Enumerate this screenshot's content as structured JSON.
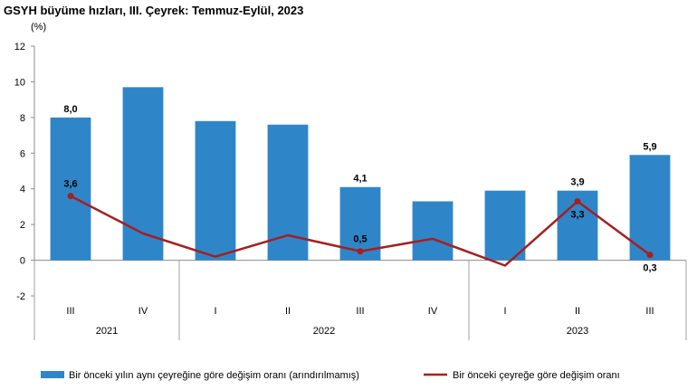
{
  "chart_data": {
    "type": "bar",
    "title": "GSYH büyüme hızları, III. Çeyrek: Temmuz-Eylül, 2023",
    "ylabel": "(%)",
    "xlabel": "",
    "ylim": [
      -2,
      12
    ],
    "yticks": [
      -2,
      0,
      2,
      4,
      6,
      8,
      10,
      12
    ],
    "categories": [
      "III",
      "IV",
      "I",
      "II",
      "III",
      "IV",
      "I",
      "II",
      "III"
    ],
    "groups": [
      {
        "label": "2021",
        "start": 0,
        "end": 1
      },
      {
        "label": "2022",
        "start": 2,
        "end": 5
      },
      {
        "label": "2023",
        "start": 6,
        "end": 8
      }
    ],
    "series": [
      {
        "name": "Bir önceki yılın aynı çeyreğine göre değişim oranı (arındırılmamış)",
        "type": "bar",
        "color": "#2e86c9",
        "values": [
          8.0,
          9.7,
          7.8,
          7.6,
          4.1,
          3.3,
          3.9,
          3.9,
          5.9
        ],
        "labels": [
          "8,0",
          "",
          "",
          "",
          "4,1",
          "",
          "",
          "3,9",
          "5,9"
        ]
      },
      {
        "name": "Bir önceki çeyreğe göre değişim oranı",
        "type": "line",
        "color": "#a61f1f",
        "values": [
          3.6,
          1.5,
          0.2,
          1.4,
          0.5,
          1.2,
          -0.3,
          3.3,
          0.3
        ],
        "labels": [
          "3,6",
          "",
          "",
          "",
          "0,5",
          "",
          "",
          "3,3",
          "0,3"
        ]
      }
    ],
    "grid": false,
    "legend": "bottom"
  }
}
